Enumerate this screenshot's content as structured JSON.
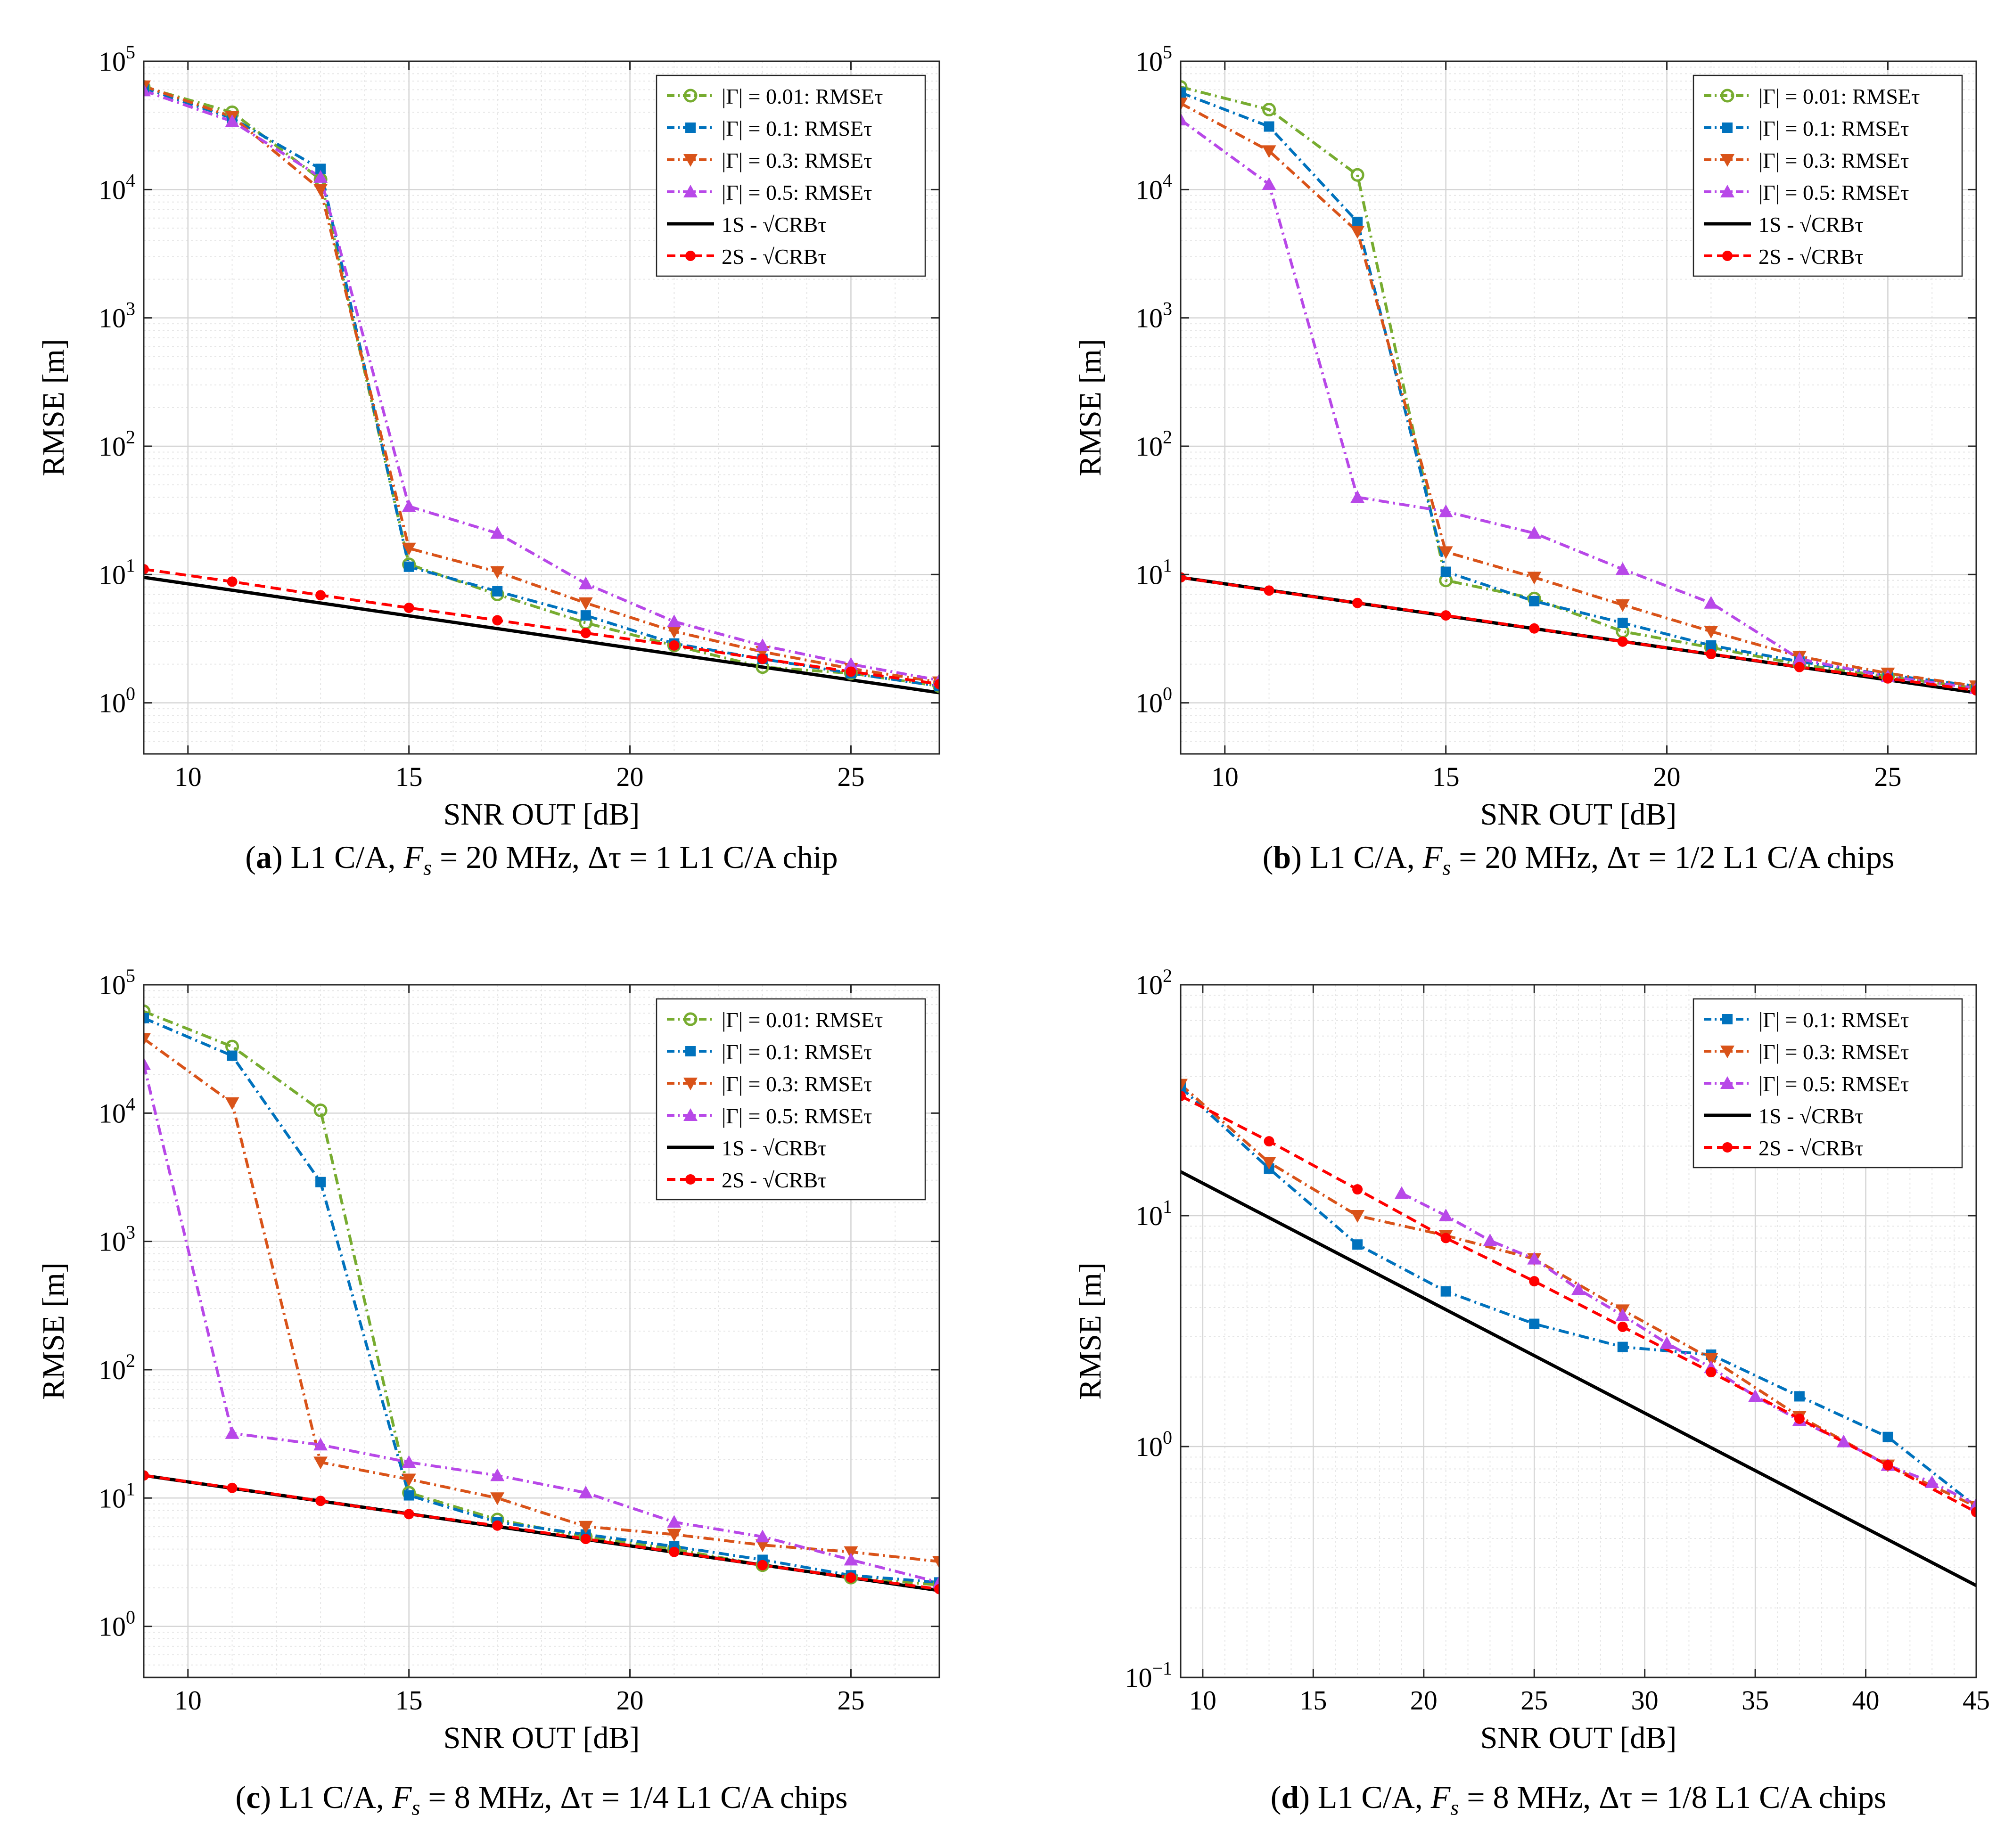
{
  "chart_data": [
    {
      "type": "line",
      "panel": "a",
      "caption": {
        "letter": "a",
        "text": "L1 C/A, F_s = 20 MHz, Δτ = 1 L1 C/A chip"
      },
      "xlabel": "SNR OUT [dB]",
      "ylabel": "RMSE [m]",
      "xlim": [
        9,
        27
      ],
      "ylim": [
        0.4,
        100000
      ],
      "yscale": "log",
      "xticks": [
        10,
        15,
        20,
        25
      ],
      "yticks": [
        {
          "value": 1,
          "label": "10",
          "exp": "0"
        },
        {
          "value": 10,
          "label": "10",
          "exp": "1"
        },
        {
          "value": 100,
          "label": "10",
          "exp": "2"
        },
        {
          "value": 1000,
          "label": "10",
          "exp": "3"
        },
        {
          "value": 10000,
          "label": "10",
          "exp": "4"
        },
        {
          "value": 100000,
          "label": "10",
          "exp": "5"
        }
      ],
      "grid": true,
      "legend_position": "top-right",
      "series": [
        {
          "name": "|Γ| = 0.01:  RMSEτ",
          "color": "#77AC30",
          "marker": "circle",
          "dash": "dashdot",
          "x": [
            9,
            11,
            13,
            15,
            17,
            19,
            21,
            23,
            25,
            27
          ],
          "y": [
            63000,
            40000,
            12000,
            12,
            7,
            4.2,
            2.8,
            1.9,
            1.7,
            1.35
          ]
        },
        {
          "name": "|Γ| = 0.1:  RMSEτ",
          "color": "#0072BD",
          "marker": "square",
          "dash": "dashdot",
          "x": [
            9,
            11,
            13,
            15,
            17,
            19,
            21,
            23,
            25,
            27
          ],
          "y": [
            62000,
            36000,
            14500,
            11.5,
            7.4,
            4.8,
            2.9,
            2.2,
            1.7,
            1.35
          ]
        },
        {
          "name": "|Γ| = 0.3:  RMSEτ",
          "color": "#D95319",
          "marker": "triangle-down",
          "dash": "dashdot",
          "x": [
            9,
            11,
            13,
            15,
            17,
            19,
            21,
            23,
            25,
            27
          ],
          "y": [
            64000,
            37000,
            10000,
            16,
            10.5,
            6,
            3.6,
            2.5,
            1.85,
            1.45
          ]
        },
        {
          "name": "|Γ| = 0.5:  RMSEτ",
          "color": "#B848E8",
          "marker": "triangle-up",
          "dash": "dashdot",
          "x": [
            9,
            11,
            13,
            15,
            17,
            19,
            21,
            23,
            25,
            27
          ],
          "y": [
            59000,
            34000,
            12500,
            34,
            21,
            8.5,
            4.3,
            2.8,
            2,
            1.5
          ]
        },
        {
          "name": "1S - √CRBτ",
          "color": "#000000",
          "marker": "none",
          "dash": "solid",
          "x": [
            9,
            27
          ],
          "y": [
            9.5,
            1.2
          ]
        },
        {
          "name": "2S - √CRBτ",
          "color": "#FF0000",
          "marker": "dot",
          "dash": "dashed",
          "x": [
            9,
            11,
            13,
            15,
            17,
            19,
            21,
            23,
            25,
            27
          ],
          "y": [
            11,
            8.8,
            6.9,
            5.5,
            4.4,
            3.5,
            2.8,
            2.2,
            1.75,
            1.4
          ]
        }
      ]
    },
    {
      "type": "line",
      "panel": "b",
      "caption": {
        "letter": "b",
        "text": "L1 C/A, F_s = 20 MHz, Δτ = 1/2 L1 C/A chips"
      },
      "xlabel": "SNR OUT [dB]",
      "ylabel": "RMSE [m]",
      "xlim": [
        9,
        27
      ],
      "ylim": [
        0.4,
        100000
      ],
      "yscale": "log",
      "xticks": [
        10,
        15,
        20,
        25
      ],
      "yticks": [
        {
          "value": 1,
          "label": "10",
          "exp": "0"
        },
        {
          "value": 10,
          "label": "10",
          "exp": "1"
        },
        {
          "value": 100,
          "label": "10",
          "exp": "2"
        },
        {
          "value": 1000,
          "label": "10",
          "exp": "3"
        },
        {
          "value": 10000,
          "label": "10",
          "exp": "4"
        },
        {
          "value": 100000,
          "label": "10",
          "exp": "5"
        }
      ],
      "grid": true,
      "legend_position": "top-right",
      "series": [
        {
          "name": "|Γ| = 0.01:  RMSEτ",
          "color": "#77AC30",
          "marker": "circle",
          "dash": "dashdot",
          "x": [
            9,
            11,
            13,
            15,
            17,
            19,
            21,
            23,
            25,
            27
          ],
          "y": [
            63000,
            42000,
            13000,
            9,
            6.5,
            3.6,
            2.7,
            2,
            1.6,
            1.3
          ]
        },
        {
          "name": "|Γ| = 0.1:  RMSEτ",
          "color": "#0072BD",
          "marker": "square",
          "dash": "dashdot",
          "x": [
            9,
            11,
            13,
            15,
            17,
            19,
            21,
            23,
            25,
            27
          ],
          "y": [
            57000,
            31000,
            5600,
            10.5,
            6.2,
            4.2,
            2.8,
            2.1,
            1.65,
            1.35
          ]
        },
        {
          "name": "|Γ| = 0.3:  RMSEτ",
          "color": "#D95319",
          "marker": "triangle-down",
          "dash": "dashdot",
          "x": [
            9,
            11,
            13,
            15,
            17,
            19,
            21,
            23,
            25,
            27
          ],
          "y": [
            47000,
            20000,
            4700,
            15,
            9.5,
            5.8,
            3.6,
            2.3,
            1.7,
            1.35
          ]
        },
        {
          "name": "|Γ| = 0.5:  RMSEτ",
          "color": "#B848E8",
          "marker": "triangle-up",
          "dash": "dashdot",
          "x": [
            9,
            11,
            13,
            15,
            17,
            19,
            21,
            23,
            25,
            27
          ],
          "y": [
            35000,
            11000,
            40,
            31,
            21,
            11,
            6,
            2.2,
            1.6,
            1.3
          ]
        },
        {
          "name": "1S - √CRBτ",
          "color": "#000000",
          "marker": "none",
          "dash": "solid",
          "x": [
            9,
            27
          ],
          "y": [
            9.5,
            1.2
          ]
        },
        {
          "name": "2S - √CRBτ",
          "color": "#FF0000",
          "marker": "dot",
          "dash": "dashed",
          "x": [
            9,
            11,
            13,
            15,
            17,
            19,
            21,
            23,
            25,
            27
          ],
          "y": [
            9.5,
            7.5,
            6,
            4.8,
            3.8,
            3,
            2.4,
            1.9,
            1.55,
            1.25
          ]
        }
      ]
    },
    {
      "type": "line",
      "panel": "c",
      "caption": {
        "letter": "c",
        "text": "L1 C/A, F_s = 8 MHz, Δτ = 1/4 L1 C/A chips"
      },
      "xlabel": "SNR OUT [dB]",
      "ylabel": "RMSE [m]",
      "xlim": [
        9,
        27
      ],
      "ylim": [
        0.4,
        100000
      ],
      "yscale": "log",
      "xticks": [
        10,
        15,
        20,
        25
      ],
      "yticks": [
        {
          "value": 1,
          "label": "10",
          "exp": "0"
        },
        {
          "value": 10,
          "label": "10",
          "exp": "1"
        },
        {
          "value": 100,
          "label": "10",
          "exp": "2"
        },
        {
          "value": 1000,
          "label": "10",
          "exp": "3"
        },
        {
          "value": 10000,
          "label": "10",
          "exp": "4"
        },
        {
          "value": 100000,
          "label": "10",
          "exp": "5"
        }
      ],
      "grid": true,
      "legend_position": "top-right",
      "series": [
        {
          "name": "|Γ| = 0.01:  RMSEτ",
          "color": "#77AC30",
          "marker": "circle",
          "dash": "dashdot",
          "x": [
            9,
            11,
            13,
            15,
            17,
            19,
            21,
            23,
            25,
            27
          ],
          "y": [
            62000,
            33000,
            10500,
            11,
            6.8,
            5,
            4,
            3,
            2.4,
            2.1
          ]
        },
        {
          "name": "|Γ| = 0.1:  RMSEτ",
          "color": "#0072BD",
          "marker": "square",
          "dash": "dashdot",
          "x": [
            9,
            11,
            13,
            15,
            17,
            19,
            21,
            23,
            25,
            27
          ],
          "y": [
            55000,
            28000,
            2900,
            10.5,
            6.5,
            5.2,
            4.2,
            3.3,
            2.5,
            2.2
          ]
        },
        {
          "name": "|Γ| = 0.3:  RMSEτ",
          "color": "#D95319",
          "marker": "triangle-down",
          "dash": "dashdot",
          "x": [
            9,
            11,
            13,
            15,
            17,
            19,
            21,
            23,
            25,
            27
          ],
          "y": [
            38000,
            12000,
            19,
            14,
            10,
            6,
            5.2,
            4.3,
            3.8,
            3.2
          ]
        },
        {
          "name": "|Γ| = 0.5:  RMSEτ",
          "color": "#B848E8",
          "marker": "triangle-up",
          "dash": "dashdot",
          "x": [
            9,
            11,
            13,
            15,
            17,
            19,
            21,
            23,
            25,
            27
          ],
          "y": [
            24000,
            32,
            26,
            19,
            15,
            11,
            6.5,
            5,
            3.3,
            2.2
          ]
        },
        {
          "name": "1S - √CRBτ",
          "color": "#000000",
          "marker": "none",
          "dash": "solid",
          "x": [
            9,
            27
          ],
          "y": [
            15,
            1.9
          ]
        },
        {
          "name": "2S - √CRBτ",
          "color": "#FF0000",
          "marker": "dot",
          "dash": "dashed",
          "x": [
            9,
            11,
            13,
            15,
            17,
            19,
            21,
            23,
            25,
            27
          ],
          "y": [
            15,
            12,
            9.5,
            7.5,
            6.1,
            4.8,
            3.8,
            3,
            2.4,
            1.95
          ]
        }
      ]
    },
    {
      "type": "line",
      "panel": "d",
      "caption": {
        "letter": "d",
        "text": "L1 C/A, F_s = 8 MHz, Δτ = 1/8 L1 C/A chips"
      },
      "xlabel": "SNR OUT [dB]",
      "ylabel": "RMSE [m]",
      "xlim": [
        9,
        45
      ],
      "ylim": [
        0.1,
        100
      ],
      "yscale": "log",
      "xticks": [
        10,
        15,
        20,
        25,
        30,
        35,
        40,
        45
      ],
      "yticks": [
        {
          "value": 0.1,
          "label": "10",
          "exp": "−1"
        },
        {
          "value": 1,
          "label": "10",
          "exp": "0"
        },
        {
          "value": 10,
          "label": "10",
          "exp": "1"
        },
        {
          "value": 100,
          "label": "10",
          "exp": "2"
        }
      ],
      "grid": true,
      "legend_position": "top-right",
      "series": [
        {
          "name": "|Γ| = 0.1:  RMSEτ",
          "color": "#0072BD",
          "marker": "square",
          "dash": "dashdot",
          "x": [
            9,
            13,
            17,
            21,
            25,
            29,
            33,
            37,
            41,
            45
          ],
          "y": [
            36,
            16,
            7.5,
            4.7,
            3.4,
            2.7,
            2.5,
            1.65,
            1.1,
            0.55
          ]
        },
        {
          "name": "|Γ| = 0.3:  RMSEτ",
          "color": "#D95319",
          "marker": "triangle-down",
          "dash": "dashdot",
          "x": [
            9,
            13,
            17,
            21,
            25,
            29,
            33,
            37,
            41,
            45
          ],
          "y": [
            37,
            17,
            10,
            8.2,
            6.5,
            3.9,
            2.4,
            1.35,
            0.83,
            0.55
          ]
        },
        {
          "name": "|Γ| = 0.5:  RMSEτ",
          "color": "#B848E8",
          "marker": "triangle-up",
          "dash": "dashdot",
          "x": [
            19,
            21,
            23,
            25,
            27,
            29,
            31,
            33,
            35,
            37,
            39,
            41,
            43,
            45
          ],
          "y": [
            12.5,
            10,
            7.8,
            6.5,
            4.8,
            3.7,
            2.8,
            2.2,
            1.65,
            1.3,
            1.05,
            0.83,
            0.7,
            0.56
          ]
        },
        {
          "name": "1S - √CRBτ",
          "color": "#000000",
          "marker": "none",
          "dash": "solid",
          "x": [
            9,
            45
          ],
          "y": [
            15.5,
            0.25
          ]
        },
        {
          "name": "2S - √CRBτ",
          "color": "#FF0000",
          "marker": "dot",
          "dash": "dashed",
          "x": [
            9,
            13,
            17,
            21,
            25,
            29,
            33,
            37,
            41,
            45
          ],
          "y": [
            33,
            21,
            13,
            8,
            5.2,
            3.3,
            2.1,
            1.32,
            0.83,
            0.52
          ]
        }
      ]
    }
  ]
}
